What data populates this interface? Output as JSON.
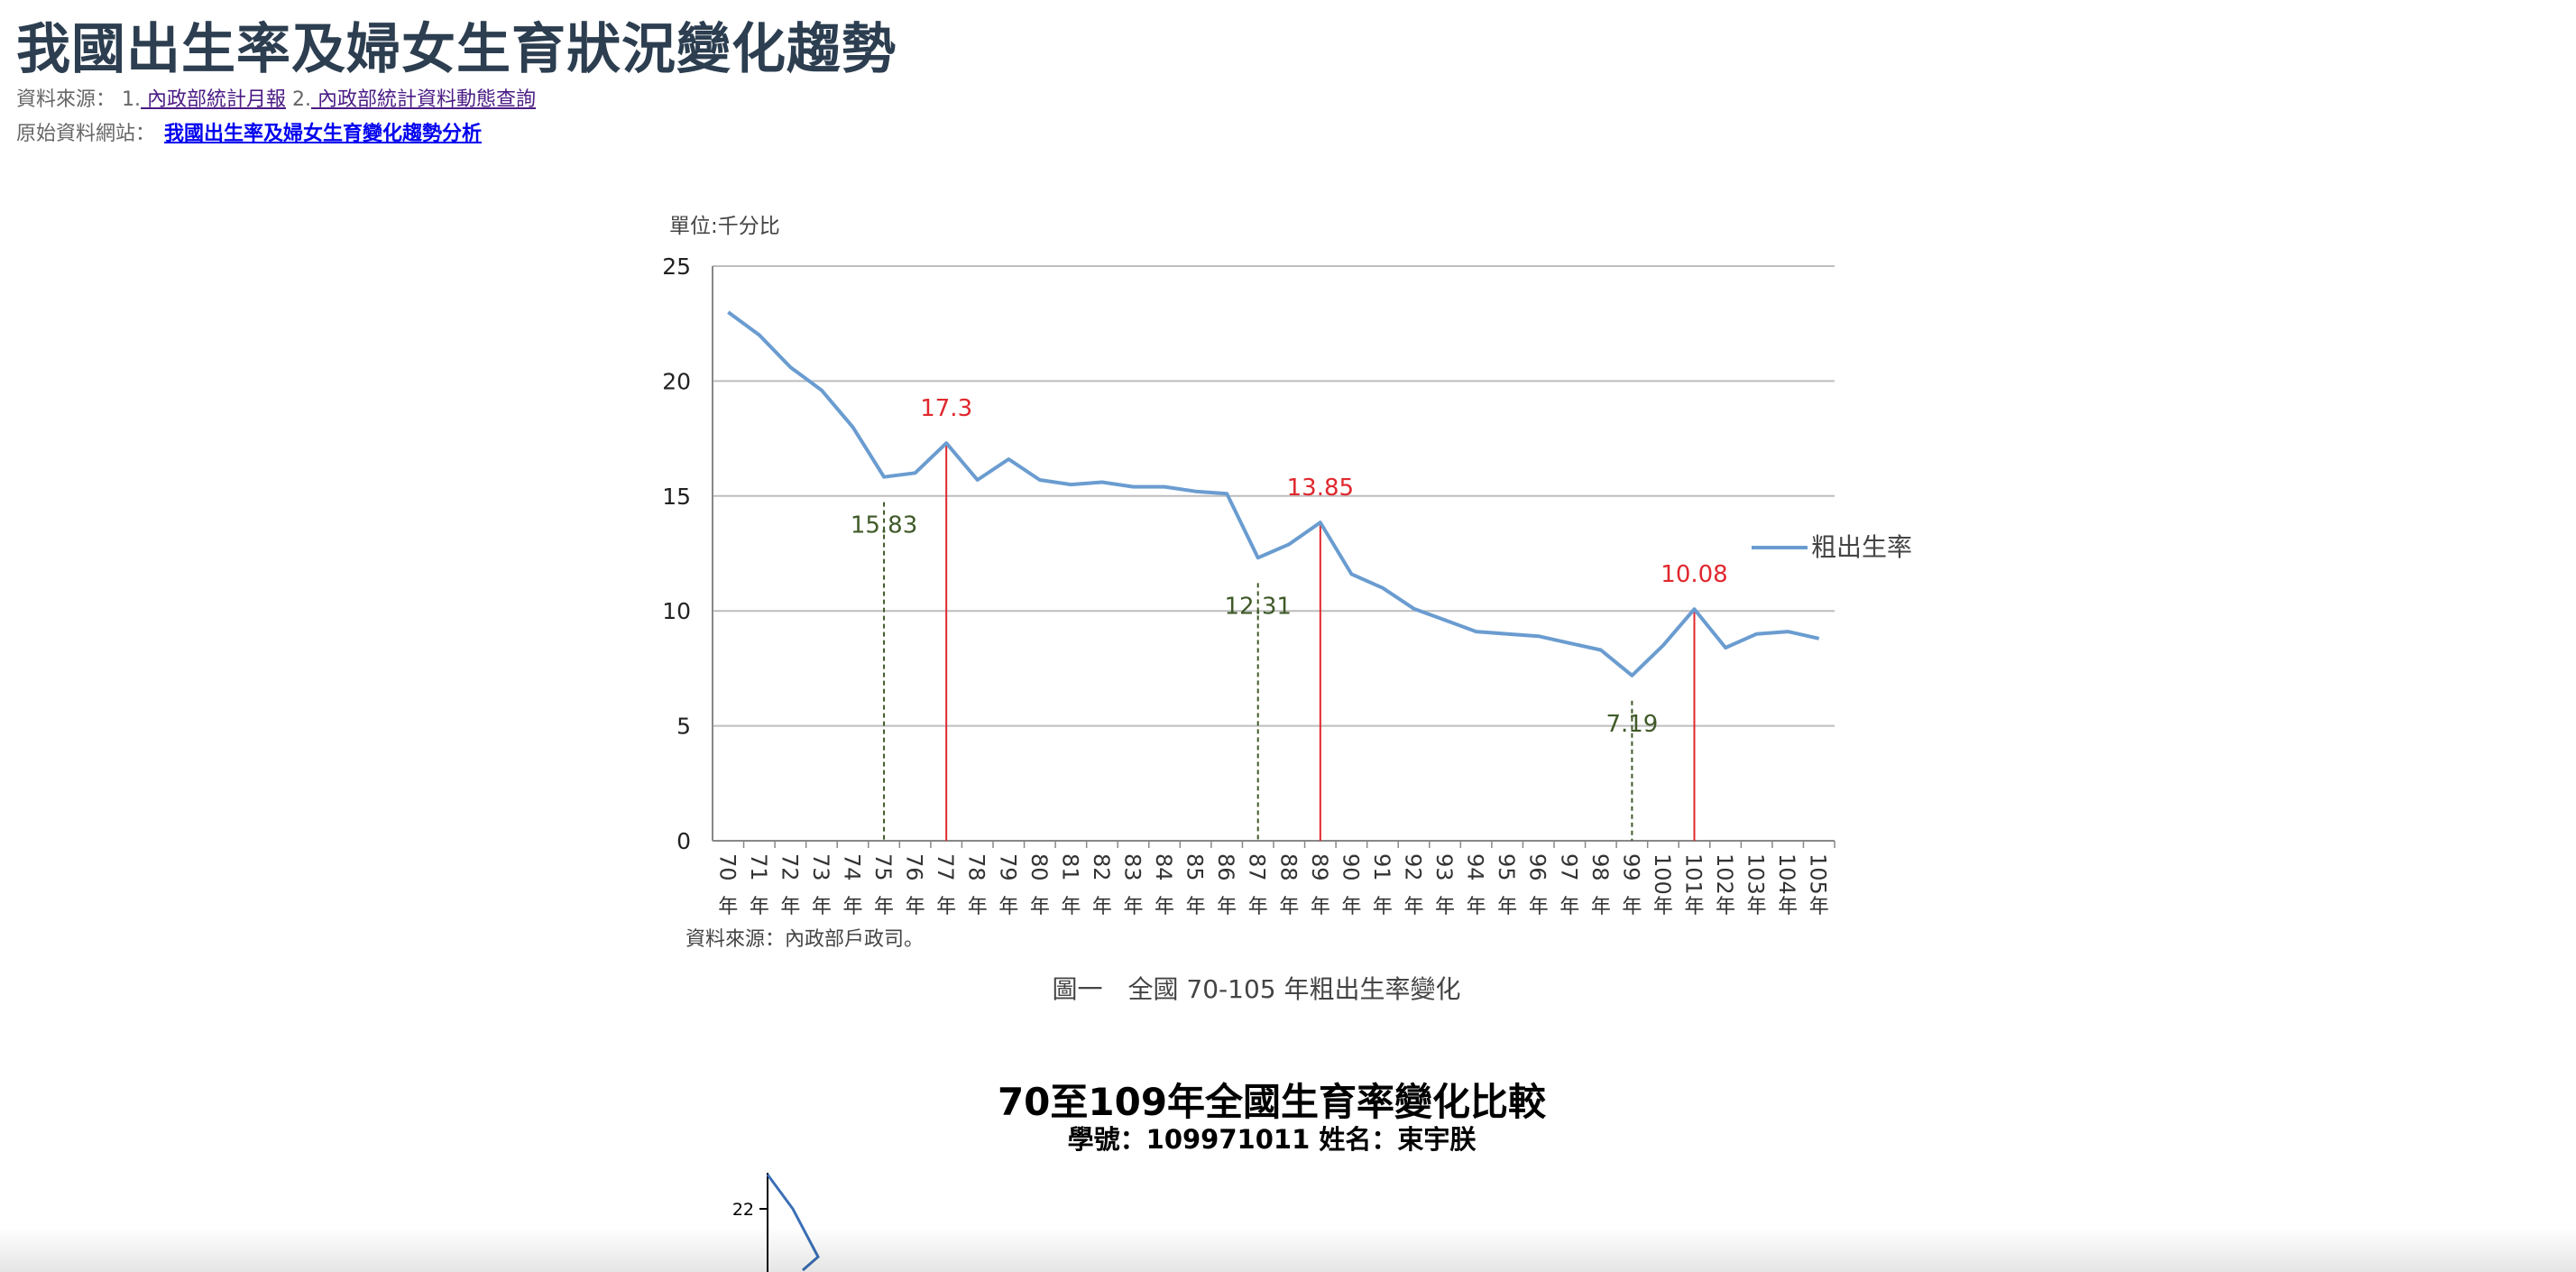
{
  "page": {
    "title": "我國出生率及婦女生育狀況變化趨勢",
    "source_label": "資料來源：",
    "source_items": [
      {
        "num": "1.",
        "text": " 內政部統計月報"
      },
      {
        "num": "2.",
        "text": " 內政部統計資料動態查詢"
      }
    ],
    "origin_label": "原始資料網站：",
    "origin_link": "我國出生率及婦女生育變化趨勢分析"
  },
  "chart_data": [
    {
      "type": "line",
      "unit_label": "單位:千分比",
      "categories": [
        "70年",
        "71年",
        "72年",
        "73年",
        "74年",
        "75年",
        "76年",
        "77年",
        "78年",
        "79年",
        "80年",
        "81年",
        "82年",
        "83年",
        "84年",
        "85年",
        "86年",
        "87年",
        "88年",
        "89年",
        "90年",
        "91年",
        "92年",
        "93年",
        "94年",
        "95年",
        "96年",
        "97年",
        "98年",
        "99年",
        "100年",
        "101年",
        "102年",
        "103年",
        "104年",
        "105年"
      ],
      "series": [
        {
          "name": "粗出生率",
          "color": "#6a9cd0",
          "values": [
            23.0,
            22.0,
            20.6,
            19.6,
            18.0,
            15.83,
            16.0,
            17.3,
            15.7,
            16.6,
            15.7,
            15.5,
            15.6,
            15.4,
            15.4,
            15.2,
            15.1,
            12.31,
            12.9,
            13.85,
            11.6,
            11.0,
            10.1,
            9.6,
            9.1,
            9.0,
            8.9,
            8.6,
            8.3,
            7.19,
            8.5,
            10.08,
            8.4,
            9.0,
            9.1,
            8.8
          ]
        }
      ],
      "ylim": [
        0,
        25
      ],
      "yticks": [
        0,
        5,
        10,
        15,
        20,
        25
      ],
      "grid": true,
      "legend": "right",
      "annotations": [
        {
          "index": 5,
          "value": 15.83,
          "label": "15.83",
          "kind": "low"
        },
        {
          "index": 7,
          "value": 17.3,
          "label": "17.3",
          "kind": "high"
        },
        {
          "index": 17,
          "value": 12.31,
          "label": "12.31",
          "kind": "low"
        },
        {
          "index": 19,
          "value": 13.85,
          "label": "13.85",
          "kind": "high"
        },
        {
          "index": 29,
          "value": 7.19,
          "label": "7.19",
          "kind": "low"
        },
        {
          "index": 31,
          "value": 10.08,
          "label": "10.08",
          "kind": "high"
        }
      ],
      "note": "資料來源：內政部戶政司。",
      "caption": "圖一　全國 70-105 年粗出生率變化",
      "colors": {
        "high": "#e0282e",
        "low": "#3f5a28",
        "grid": "#bdbdbd",
        "line": "#6a9cd0"
      }
    },
    {
      "type": "line",
      "title": "70至109年全國生育率變化比較",
      "subtitle": "學號：109971011 姓名：束宇朕",
      "visible_ticks": [
        22
      ],
      "series": [
        {
          "name": "",
          "color": "#3b6fb6",
          "values": [
            23.0,
            22.0,
            20.6
          ]
        }
      ]
    }
  ]
}
